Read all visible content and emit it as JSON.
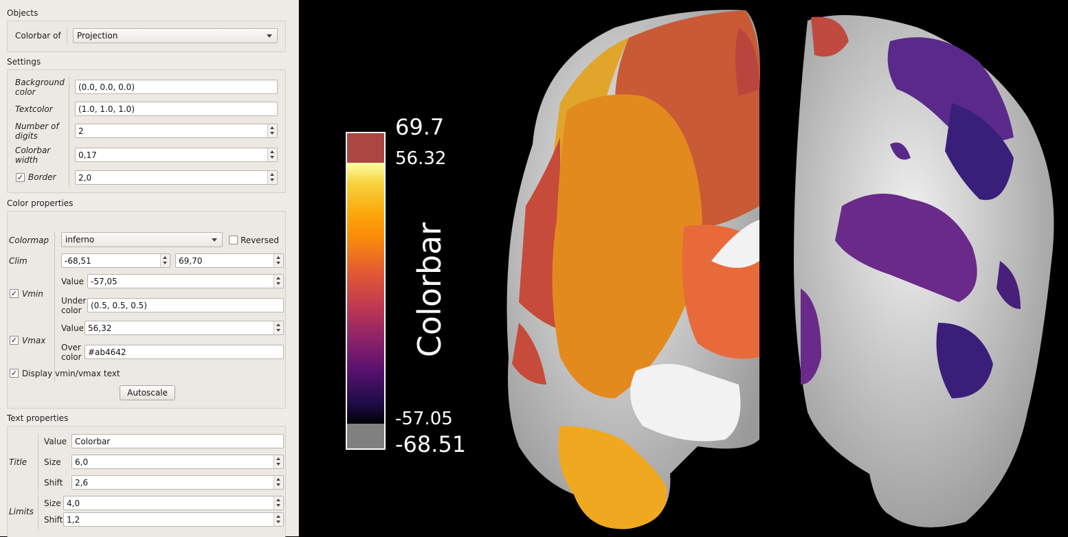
{
  "objects": {
    "section_title": "Objects",
    "colorbar_of_label": "Colorbar of",
    "colorbar_of_value": "Projection"
  },
  "settings": {
    "section_title": "Settings",
    "background_color_label_1": "Background",
    "background_color_label_2": "color",
    "background_color_value": "(0.0, 0.0, 0.0)",
    "textcolor_label": "Textcolor",
    "textcolor_value": "(1.0, 1.0, 1.0)",
    "digits_label_1": "Number of",
    "digits_label_2": "digits",
    "digits_value": "2",
    "width_label_1": "Colorbar",
    "width_label_2": "width",
    "width_value": "0,17",
    "border_label": "Border",
    "border_checked": true,
    "border_value": "2,0"
  },
  "color_properties": {
    "section_title": "Color properties",
    "colormap_label": "Colormap",
    "colormap_value": "inferno",
    "reversed_label": "Reversed",
    "reversed_checked": false,
    "clim_label": "Clim",
    "clim_min": "-68,51",
    "clim_max": "69,70",
    "vmin_label": "Vmin",
    "vmin_checked": true,
    "vmin_value_label": "Value",
    "vmin_value": "-57,05",
    "under_color_label_1": "Under",
    "under_color_label_2": "color",
    "under_color_value": "(0.5, 0.5, 0.5)",
    "vmax_label": "Vmax",
    "vmax_checked": true,
    "vmax_value_label": "Value",
    "vmax_value": "56,32",
    "over_color_label_1": "Over",
    "over_color_label_2": "color",
    "over_color_value": "#ab4642",
    "display_text_label": "Display vmin/vmax text",
    "display_text_checked": true,
    "autoscale_label": "Autoscale"
  },
  "text_properties": {
    "section_title": "Text properties",
    "title_label": "Title",
    "title_value_label": "Value",
    "title_value": "Colorbar",
    "title_size_label": "Size",
    "title_size": "6,0",
    "title_shift_label": "Shift",
    "title_shift": "2,6",
    "limits_label": "Limits",
    "limits_size_label": "Size",
    "limits_size": "4,0",
    "limits_shift_label": "Shift",
    "limits_shift": "1,2"
  },
  "colorbar": {
    "title": "Colorbar",
    "clim_max_text": "69.7",
    "vmax_text": "56.32",
    "vmin_text": "-57.05",
    "clim_min_text": "-68.51",
    "over_color": "#ab4642",
    "under_color": "#808080",
    "colormap": "inferno"
  },
  "icons": {
    "combo_arrow": "chevron-down-icon",
    "spin_up": "arrow-up-icon",
    "spin_down": "arrow-down-icon",
    "checkbox": "check-icon"
  }
}
